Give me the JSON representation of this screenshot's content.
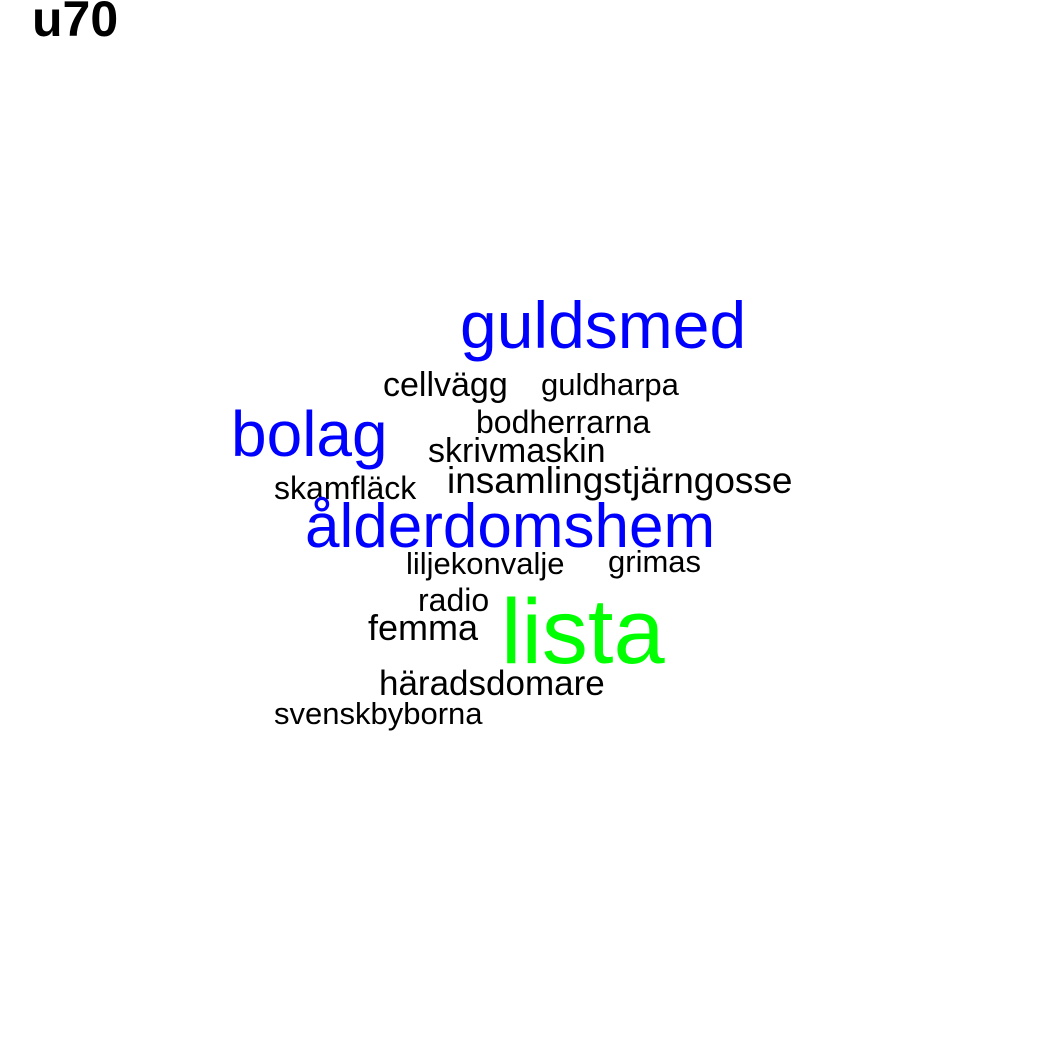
{
  "title": "u70",
  "colors": {
    "background": "#ffffff",
    "title": "#000000",
    "level_high": "#00ff00",
    "level_mid": "#0000ff",
    "level_low": "#000000"
  },
  "words": {
    "guldsmed": {
      "text": "guldsmed",
      "color": "#0000ff"
    },
    "cellvagg": {
      "text": "cellvägg",
      "color": "#000000"
    },
    "guldharpa": {
      "text": "guldharpa",
      "color": "#000000"
    },
    "bodherrarna": {
      "text": "bodherrarna",
      "color": "#000000"
    },
    "bolag": {
      "text": "bolag",
      "color": "#0000ff"
    },
    "skrivmaskin": {
      "text": "skrivmaskin",
      "color": "#000000"
    },
    "insamlingstjarngosse": {
      "text": "insamlingstjärngosse",
      "color": "#000000"
    },
    "skamflack": {
      "text": "skamfläck",
      "color": "#000000"
    },
    "alderdomshem": {
      "text": "ålderdomshem",
      "color": "#0000ff"
    },
    "liljekonvalje": {
      "text": "liljekonvalje",
      "color": "#000000"
    },
    "grimas": {
      "text": "grimas",
      "color": "#000000"
    },
    "radio": {
      "text": "radio",
      "color": "#000000"
    },
    "lista": {
      "text": "lista",
      "color": "#00ff00"
    },
    "femma": {
      "text": "femma",
      "color": "#000000"
    },
    "haradsdomare": {
      "text": "häradsdomare",
      "color": "#000000"
    },
    "svenskbyborna": {
      "text": "svenskbyborna",
      "color": "#000000"
    }
  }
}
